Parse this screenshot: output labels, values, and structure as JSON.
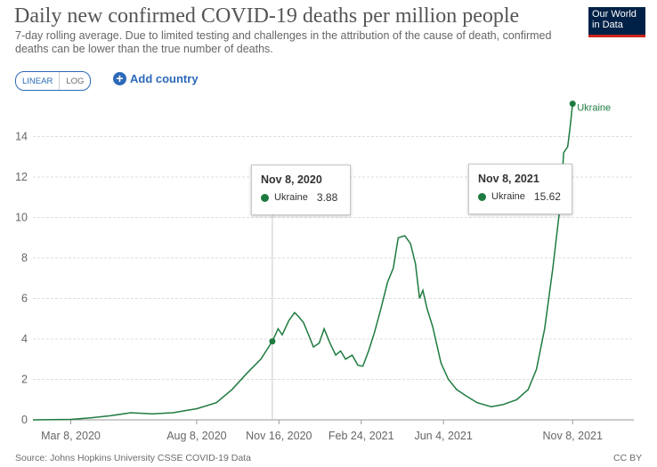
{
  "header": {
    "title": "Daily new confirmed COVID-19 deaths per million people",
    "subtitle": "7-day rolling average. Due to limited testing and challenges in the attribution of the cause of death, confirmed deaths can be lower than the true number of deaths.",
    "logo_line1": "Our World",
    "logo_line2": "in Data"
  },
  "controls": {
    "linear_label": "LINEAR",
    "log_label": "LOG",
    "add_country_label": "Add country"
  },
  "footer": {
    "source": "Source: Johns Hopkins University CSSE COVID-19 Data",
    "license": "CC BY"
  },
  "tooltips": [
    {
      "date": "Nov 8, 2020",
      "series": "Ukraine",
      "value": "3.88"
    },
    {
      "date": "Nov 8, 2021",
      "series": "Ukraine",
      "value": "15.62"
    }
  ],
  "colors": {
    "series": "#1e7b3f",
    "accent": "#2c69b8"
  },
  "chart_data": {
    "type": "line",
    "title": "Daily new confirmed COVID-19 deaths per million people",
    "ylim": [
      0,
      16
    ],
    "y_ticks": [
      0,
      2,
      4,
      6,
      8,
      10,
      12,
      14
    ],
    "xlim": [
      "2020-01-22",
      "2021-11-11"
    ],
    "x_ticks": [
      {
        "date": "2020-03-08",
        "label": "Mar 8, 2020"
      },
      {
        "date": "2020-08-08",
        "label": "Aug 8, 2020"
      },
      {
        "date": "2020-11-16",
        "label": "Nov 16, 2020"
      },
      {
        "date": "2021-02-24",
        "label": "Feb 24, 2021"
      },
      {
        "date": "2021-06-04",
        "label": "Jun 4, 2021"
      },
      {
        "date": "2021-11-08",
        "label": "Nov 8, 2021"
      }
    ],
    "grid": "horizontal",
    "series": [
      {
        "name": "Ukraine",
        "end_label": "Ukraine",
        "points": [
          [
            "2020-01-22",
            0
          ],
          [
            "2020-03-08",
            0.02
          ],
          [
            "2020-04-01",
            0.1
          ],
          [
            "2020-04-25",
            0.2
          ],
          [
            "2020-05-20",
            0.35
          ],
          [
            "2020-06-15",
            0.3
          ],
          [
            "2020-07-10",
            0.35
          ],
          [
            "2020-08-08",
            0.55
          ],
          [
            "2020-09-01",
            0.85
          ],
          [
            "2020-09-20",
            1.5
          ],
          [
            "2020-10-08",
            2.3
          ],
          [
            "2020-10-25",
            3.0
          ],
          [
            "2020-11-08",
            3.88
          ],
          [
            "2020-11-15",
            4.5
          ],
          [
            "2020-11-20",
            4.2
          ],
          [
            "2020-11-28",
            4.9
          ],
          [
            "2020-12-05",
            5.3
          ],
          [
            "2020-12-10",
            5.1
          ],
          [
            "2020-12-16",
            4.8
          ],
          [
            "2020-12-22",
            4.2
          ],
          [
            "2020-12-28",
            3.6
          ],
          [
            "2021-01-04",
            3.8
          ],
          [
            "2021-01-10",
            4.5
          ],
          [
            "2021-01-17",
            3.8
          ],
          [
            "2021-01-24",
            3.2
          ],
          [
            "2021-01-30",
            3.4
          ],
          [
            "2021-02-05",
            3.0
          ],
          [
            "2021-02-13",
            3.2
          ],
          [
            "2021-02-20",
            2.7
          ],
          [
            "2021-02-26",
            2.65
          ],
          [
            "2021-03-05",
            3.4
          ],
          [
            "2021-03-12",
            4.3
          ],
          [
            "2021-03-20",
            5.5
          ],
          [
            "2021-03-28",
            6.8
          ],
          [
            "2021-04-04",
            7.5
          ],
          [
            "2021-04-10",
            9.0
          ],
          [
            "2021-04-18",
            9.1
          ],
          [
            "2021-04-25",
            8.7
          ],
          [
            "2021-05-01",
            7.7
          ],
          [
            "2021-05-06",
            6.0
          ],
          [
            "2021-05-10",
            6.4
          ],
          [
            "2021-05-15",
            5.5
          ],
          [
            "2021-05-22",
            4.6
          ],
          [
            "2021-06-01",
            2.8
          ],
          [
            "2021-06-10",
            2.0
          ],
          [
            "2021-06-20",
            1.5
          ],
          [
            "2021-07-01",
            1.2
          ],
          [
            "2021-07-15",
            0.85
          ],
          [
            "2021-08-01",
            0.65
          ],
          [
            "2021-08-15",
            0.75
          ],
          [
            "2021-09-01",
            1.0
          ],
          [
            "2021-09-15",
            1.5
          ],
          [
            "2021-09-25",
            2.5
          ],
          [
            "2021-10-05",
            4.5
          ],
          [
            "2021-10-15",
            7.5
          ],
          [
            "2021-10-25",
            11.0
          ],
          [
            "2021-10-28",
            13.2
          ],
          [
            "2021-11-02",
            13.5
          ],
          [
            "2021-11-05",
            14.5
          ],
          [
            "2021-11-08",
            15.62
          ]
        ]
      }
    ]
  }
}
